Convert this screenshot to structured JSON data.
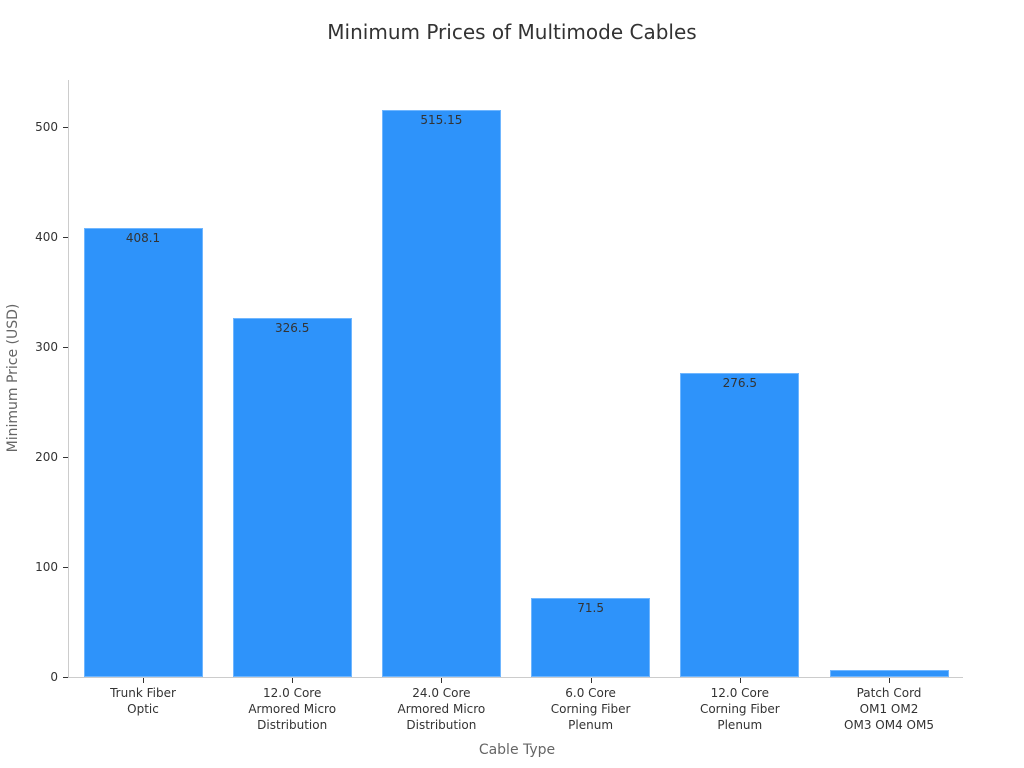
{
  "chart_data": {
    "type": "bar",
    "title": "Minimum Prices of Multimode Cables",
    "xlabel": "Cable Type",
    "ylabel": "Minimum Price (USD)",
    "categories": [
      "Trunk Fiber\nOptic",
      "12.0 Core\nArmored Micro\nDistribution",
      "24.0 Core\nArmored Micro\nDistribution",
      "6.0 Core\nCorning Fiber\nPlenum",
      "12.0 Core\nCorning Fiber\nPlenum",
      "Patch Cord\nOM1 OM2\nOM3 OM4 OM5"
    ],
    "values": [
      408.1,
      326.5,
      515.15,
      71.5,
      276.5,
      6.5
    ],
    "value_labels": [
      "408.1",
      "326.5",
      "515.15",
      "71.5",
      "276.5",
      ""
    ],
    "yticks": [
      0,
      100,
      200,
      300,
      400,
      500
    ],
    "ylim": [
      0,
      542
    ],
    "grid": false,
    "legend": null,
    "bar_color": "#2e93fa"
  }
}
